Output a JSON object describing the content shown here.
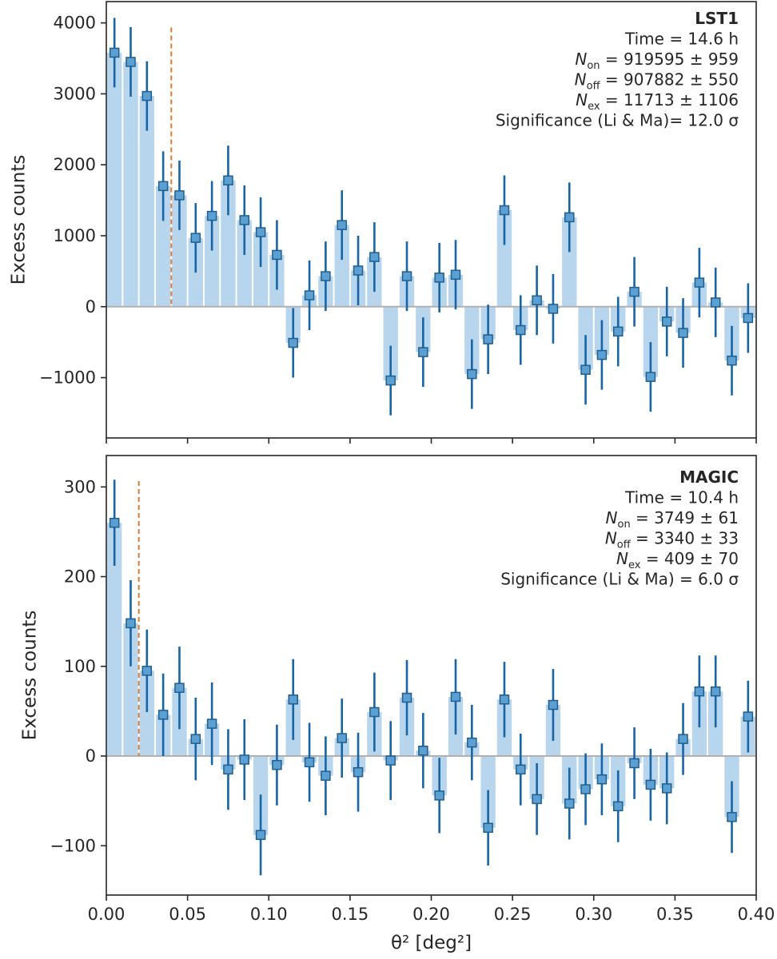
{
  "chart_data": [
    {
      "type": "bar",
      "title": "LST1",
      "ylabel": "Excess counts",
      "xlabel": "",
      "xlim": [
        0.0,
        0.4
      ],
      "ylim": [
        -1850,
        4300
      ],
      "yticks": [
        -1000,
        0,
        1000,
        2000,
        3000,
        4000
      ],
      "ytick_labels": [
        "−1000",
        "0",
        "1000",
        "2000",
        "3000",
        "4000"
      ],
      "cut": 0.04,
      "bar_width": 0.01,
      "x": [
        0.005,
        0.015,
        0.025,
        0.035,
        0.045,
        0.055,
        0.065,
        0.075,
        0.085,
        0.095,
        0.105,
        0.115,
        0.125,
        0.135,
        0.145,
        0.155,
        0.165,
        0.175,
        0.185,
        0.195,
        0.205,
        0.215,
        0.225,
        0.235,
        0.245,
        0.255,
        0.265,
        0.275,
        0.285,
        0.295,
        0.305,
        0.315,
        0.325,
        0.335,
        0.345,
        0.355,
        0.365,
        0.375,
        0.385,
        0.395
      ],
      "values": [
        3580,
        3450,
        2970,
        1700,
        1570,
        970,
        1280,
        1780,
        1220,
        1050,
        730,
        -510,
        160,
        430,
        1150,
        510,
        700,
        -1040,
        430,
        -640,
        410,
        450,
        -950,
        -460,
        1360,
        -330,
        90,
        -30,
        1260,
        -890,
        -680,
        -350,
        210,
        -990,
        -210,
        -370,
        340,
        60,
        -760,
        -160
      ],
      "errors": [
        490,
        490,
        490,
        490,
        490,
        490,
        490,
        490,
        490,
        490,
        490,
        490,
        490,
        490,
        490,
        490,
        490,
        490,
        490,
        490,
        490,
        490,
        490,
        490,
        490,
        490,
        490,
        490,
        490,
        490,
        490,
        490,
        490,
        490,
        490,
        490,
        490,
        490,
        490,
        490
      ],
      "info": {
        "title": "LST1",
        "lines": [
          {
            "main": "Time = 14.6 h"
          },
          {
            "var": "N",
            "sub": "on",
            "rest": " = 919595 ± 959"
          },
          {
            "var": "N",
            "sub": "off",
            "rest": " = 907882 ± 550"
          },
          {
            "var": "N",
            "sub": "ex",
            "rest": " = 11713 ± 1106"
          },
          {
            "main": "Significance (Li & Ma)= 12.0 σ"
          }
        ]
      }
    },
    {
      "type": "bar",
      "title": "MAGIC",
      "ylabel": "Excess counts",
      "xlabel": "θ² [deg²]",
      "xlim": [
        0.0,
        0.4
      ],
      "ylim": [
        -155,
        335
      ],
      "yticks": [
        -100,
        0,
        100,
        200,
        300
      ],
      "ytick_labels": [
        "−100",
        "0",
        "100",
        "200",
        "300"
      ],
      "xticks": [
        0.0,
        0.05,
        0.1,
        0.15,
        0.2,
        0.25,
        0.3,
        0.35,
        0.4
      ],
      "xtick_labels": [
        "0.00",
        "0.05",
        "0.10",
        "0.15",
        "0.20",
        "0.25",
        "0.30",
        "0.35",
        "0.40"
      ],
      "cut": 0.02,
      "bar_width": 0.01,
      "x": [
        0.005,
        0.015,
        0.025,
        0.035,
        0.045,
        0.055,
        0.065,
        0.075,
        0.085,
        0.095,
        0.105,
        0.115,
        0.125,
        0.135,
        0.145,
        0.155,
        0.165,
        0.175,
        0.185,
        0.195,
        0.205,
        0.215,
        0.225,
        0.235,
        0.245,
        0.255,
        0.265,
        0.275,
        0.285,
        0.295,
        0.305,
        0.315,
        0.325,
        0.335,
        0.345,
        0.355,
        0.365,
        0.375,
        0.385,
        0.395
      ],
      "values": [
        260,
        148,
        95,
        46,
        76,
        19,
        36,
        -15,
        -4,
        -88,
        -10,
        63,
        -7,
        -22,
        20,
        -18,
        49,
        -5,
        65,
        6,
        -44,
        66,
        15,
        -80,
        63,
        -15,
        -48,
        57,
        -53,
        -37,
        -26,
        -56,
        -8,
        -32,
        -36,
        19,
        72,
        72,
        -68,
        44
      ],
      "errors": [
        48,
        48,
        46,
        46,
        46,
        46,
        46,
        45,
        45,
        45,
        45,
        45,
        44,
        44,
        44,
        44,
        44,
        44,
        42,
        42,
        42,
        42,
        42,
        42,
        42,
        40,
        40,
        40,
        40,
        40,
        40,
        40,
        40,
        40,
        40,
        40,
        40,
        40,
        40,
        40
      ],
      "info": {
        "title": "MAGIC",
        "lines": [
          {
            "main": "Time = 10.4 h"
          },
          {
            "var": "N",
            "sub": "on",
            "rest": " = 3749 ± 61"
          },
          {
            "var": "N",
            "sub": "off",
            "rest": " = 3340 ± 33"
          },
          {
            "var": "N",
            "sub": "ex",
            "rest": " = 409 ± 70"
          },
          {
            "main": "Significance (Li & Ma) = 6.0 σ"
          }
        ]
      }
    }
  ],
  "colors": {
    "bar": "#b7d5ec",
    "marker": "#5b9fd3",
    "marker_edge": "#1f5f8f",
    "errorbar": "#1764a6",
    "cut_line": "#e07b2f",
    "zero_line": "#b0b0b0",
    "axis": "#262626"
  }
}
